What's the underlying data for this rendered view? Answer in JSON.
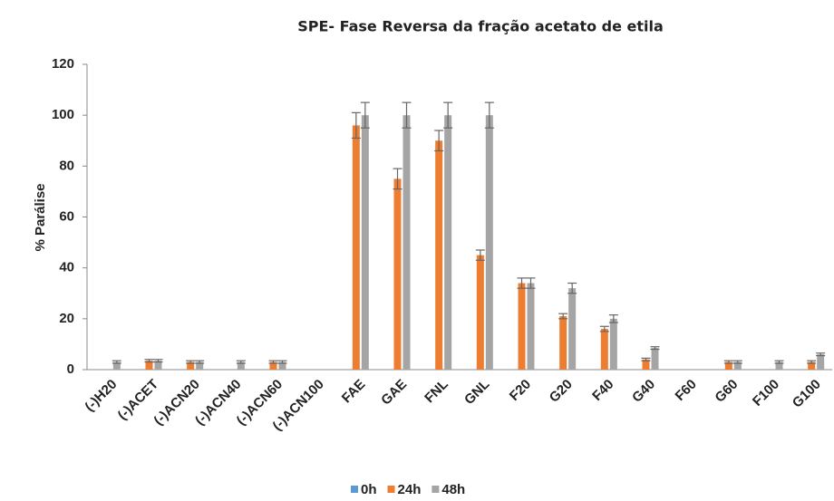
{
  "chart_data": {
    "type": "bar",
    "title": "SPE- Fase Reversa da fração acetato de etila",
    "y_label": "% Parálise",
    "categories": [
      "(-)H20",
      "(-)ACET",
      "(-)ACN20",
      "(-)ACN40",
      "(-)ACN60",
      "(-)ACN100",
      "FAE",
      "GAE",
      "FNL",
      "GNL",
      "F20",
      "G20",
      "F40",
      "G40",
      "F60",
      "G60",
      "F100",
      "G100"
    ],
    "series": [
      {
        "name": "0h",
        "color": "#5b9bd5",
        "values": [
          0,
          0,
          0,
          0,
          0,
          0,
          0,
          0,
          0,
          0,
          0,
          0,
          0,
          0,
          0,
          0,
          0,
          0
        ],
        "errors": [
          0,
          0,
          0,
          0,
          0,
          0,
          0,
          0,
          0,
          0,
          0,
          0,
          0,
          0,
          0,
          0,
          0,
          0
        ]
      },
      {
        "name": "24h",
        "color": "#ed7d31",
        "values": [
          0,
          3.5,
          3,
          0,
          3,
          0,
          96,
          75,
          90,
          45,
          34,
          21,
          16,
          4,
          0,
          3,
          0,
          3
        ],
        "errors": [
          0,
          0.5,
          0.5,
          0,
          0.5,
          0,
          5,
          4,
          4,
          2,
          2,
          1,
          1,
          0.5,
          0,
          0.5,
          0,
          0.5
        ]
      },
      {
        "name": "48h",
        "color": "#a5a5a5",
        "values": [
          3,
          3.5,
          3,
          3,
          3,
          0,
          100,
          100,
          100,
          100,
          34,
          32,
          20,
          8.5,
          0,
          3,
          3,
          6
        ],
        "errors": [
          0.5,
          0.5,
          0.5,
          0.5,
          0.5,
          0,
          5,
          5,
          5,
          5,
          2,
          2,
          1.5,
          0.5,
          0,
          0.5,
          0.5,
          0.5
        ]
      }
    ],
    "ylim": [
      0,
      120
    ],
    "yticks": [
      0,
      20,
      40,
      60,
      80,
      100,
      120
    ],
    "grid": false,
    "legend": "bottom"
  }
}
